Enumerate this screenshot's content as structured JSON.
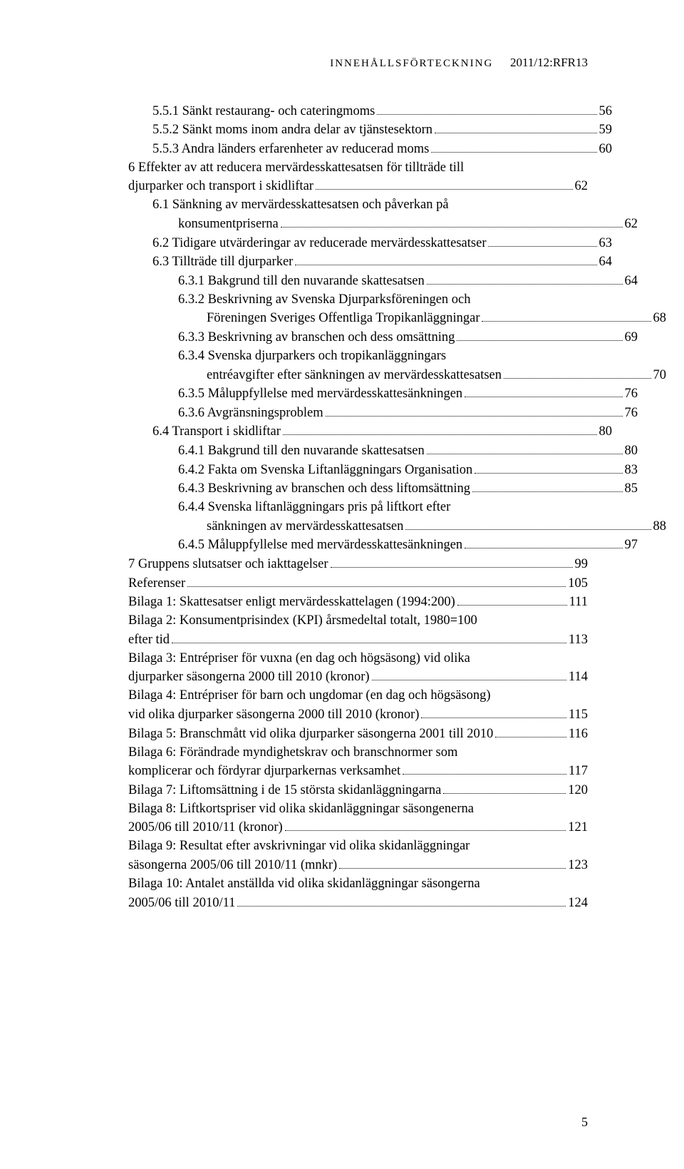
{
  "header": {
    "caps": "INNEHÅLLSFÖRTECKNING",
    "label": "2011/12:RFR13"
  },
  "toc": [
    {
      "indent": 1,
      "text": "5.5.1 Sänkt restaurang- och cateringmoms",
      "page": "56"
    },
    {
      "indent": 1,
      "text": "5.5.2 Sänkt moms inom andra delar av tjänstesektorn",
      "page": "59"
    },
    {
      "indent": 1,
      "text": "5.5.3 Andra länders erfarenheter av reducerad moms",
      "page": "60"
    },
    {
      "indent": 0,
      "multi": true,
      "first": "6 Effekter av att reducera mervärdesskattesatsen för tillträde till",
      "second": "djurparker och transport i skidliftar",
      "page": "62"
    },
    {
      "indent": 1,
      "multi": true,
      "first": "6.1 Sänkning av mervärdesskattesatsen och påverkan på",
      "second": "konsumentpriserna",
      "secondIndent": 2,
      "page": "62"
    },
    {
      "indent": 1,
      "text": "6.2 Tidigare utvärderingar av reducerade mervärdesskattesatser",
      "page": "63"
    },
    {
      "indent": 1,
      "text": "6.3 Tillträde till djurparker",
      "page": "64"
    },
    {
      "indent": 2,
      "text": "6.3.1 Bakgrund till den nuvarande skattesatsen",
      "page": "64"
    },
    {
      "indent": 2,
      "multi": true,
      "first": "6.3.2 Beskrivning av Svenska Djurparksföreningen och",
      "second": "Föreningen Sveriges Offentliga Tropikanläggningar",
      "secondIndent": 2,
      "secondExtra": true,
      "page": "68"
    },
    {
      "indent": 2,
      "text": "6.3.3 Beskrivning av branschen och dess omsättning",
      "page": "69"
    },
    {
      "indent": 2,
      "multi": true,
      "first": "6.3.4 Svenska djurparkers och tropikanläggningars",
      "second": "entréavgifter efter sänkningen av mervärdesskattesatsen",
      "secondIndent": 2,
      "secondExtra": true,
      "page": "70"
    },
    {
      "indent": 2,
      "text": "6.3.5 Måluppfyllelse med mervärdesskattesänkningen",
      "page": "76"
    },
    {
      "indent": 2,
      "text": "6.3.6 Avgränsningsproblem",
      "page": "76"
    },
    {
      "indent": 1,
      "text": "6.4 Transport i skidliftar",
      "page": "80"
    },
    {
      "indent": 2,
      "text": "6.4.1 Bakgrund till den nuvarande skattesatsen",
      "page": "80"
    },
    {
      "indent": 2,
      "text": "6.4.2 Fakta om Svenska Liftanläggningars Organisation",
      "page": "83"
    },
    {
      "indent": 2,
      "text": "6.4.3 Beskrivning av branschen och dess liftomsättning",
      "page": "85"
    },
    {
      "indent": 2,
      "multi": true,
      "first": "6.4.4 Svenska liftanläggningars pris på liftkort efter",
      "second": "sänkningen av mervärdesskattesatsen",
      "secondIndent": 2,
      "secondExtra": true,
      "page": "88"
    },
    {
      "indent": 2,
      "text": "6.4.5 Måluppfyllelse med mervärdesskattesänkningen",
      "page": "97"
    },
    {
      "indent": 0,
      "text": "7 Gruppens slutsatser och iakttagelser",
      "page": "99"
    },
    {
      "indent": 0,
      "text": "Referenser",
      "page": "105"
    },
    {
      "indent": 0,
      "text": "Bilaga 1: Skattesatser enligt mervärdesskattelagen (1994:200)",
      "page": "111"
    },
    {
      "indent": 0,
      "multi": true,
      "first": "Bilaga 2: Konsumentprisindex (KPI) årsmedeltal totalt, 1980=100",
      "second": "efter tid",
      "page": "113"
    },
    {
      "indent": 0,
      "multi": true,
      "first": "Bilaga 3: Entrépriser för vuxna (en dag och högsäsong) vid olika",
      "second": "djurparker säsongerna 2000 till 2010 (kronor)",
      "page": "114"
    },
    {
      "indent": 0,
      "multi": true,
      "first": "Bilaga 4: Entrépriser för barn och ungdomar (en dag och högsäsong)",
      "second": "vid olika djurparker säsongerna 2000 till 2010 (kronor)",
      "page": "115"
    },
    {
      "indent": 0,
      "text": "Bilaga 5: Branschmått vid olika djurparker säsongerna 2001 till 2010",
      "page": "116"
    },
    {
      "indent": 0,
      "multi": true,
      "first": "Bilaga 6: Förändrade myndighetskrav och branschnormer som",
      "second": "komplicerar och fördyrar djurparkernas verksamhet",
      "page": "117"
    },
    {
      "indent": 0,
      "text": "Bilaga 7: Liftomsättning i de 15 största skidanläggningarna",
      "page": "120"
    },
    {
      "indent": 0,
      "multi": true,
      "first": "Bilaga 8: Liftkortspriser vid olika skidanläggningar säsongenerna",
      "second": "2005/06 till 2010/11 (kronor)",
      "page": "121"
    },
    {
      "indent": 0,
      "multi": true,
      "first": "Bilaga 9: Resultat efter avskrivningar vid olika skidanläggningar",
      "second": "säsongerna 2005/06 till 2010/11 (mnkr)",
      "page": "123"
    },
    {
      "indent": 0,
      "multi": true,
      "first": "Bilaga 10: Antalet anställda vid olika skidanläggningar säsongerna",
      "second": "2005/06 till 2010/11",
      "page": "124"
    }
  ],
  "pageNumber": "5"
}
